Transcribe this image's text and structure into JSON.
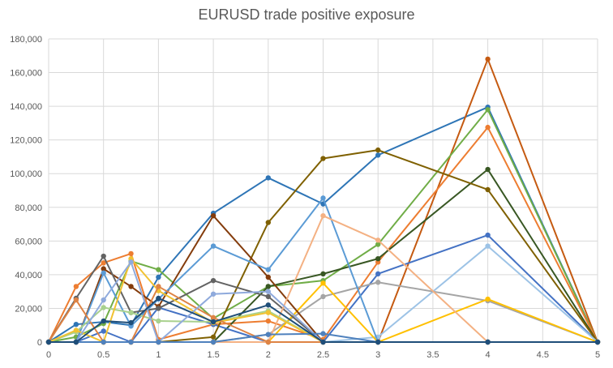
{
  "chart_data": {
    "type": "line",
    "title": "EURUSD trade positive exposure",
    "xlabel": "",
    "ylabel": "",
    "xlim": [
      0,
      5
    ],
    "ylim": [
      0,
      180000
    ],
    "x_ticks": [
      "0",
      "0.5",
      "1",
      "1.5",
      "2",
      "2.5",
      "3",
      "3.5",
      "4",
      "4.5",
      "5"
    ],
    "y_ticks": [
      "0",
      "20,000",
      "40,000",
      "60,000",
      "80,000",
      "100,000",
      "120,000",
      "140,000",
      "160,000",
      "180,000"
    ],
    "grid": true,
    "legend": "none",
    "x": [
      0,
      0.25,
      0.5,
      0.75,
      1,
      1.5,
      2,
      2.5,
      3,
      4,
      5
    ],
    "series": [
      {
        "color": "#2E75B6",
        "values": [
          0,
          10500,
          12000,
          10000,
          38500,
          76500,
          97500,
          82000,
          111000,
          139500,
          0
        ]
      },
      {
        "color": "#C55A11",
        "values": [
          0,
          0,
          0,
          0,
          0,
          0,
          0,
          0,
          0,
          168000,
          0
        ]
      },
      {
        "color": "#70AD47",
        "values": [
          0,
          3000,
          11000,
          48000,
          43000,
          14000,
          33000,
          36500,
          58000,
          138000,
          0
        ]
      },
      {
        "color": "#ED7D31",
        "values": [
          0,
          33000,
          47000,
          52500,
          1500,
          10500,
          12500,
          1500,
          47500,
          127500,
          0
        ]
      },
      {
        "color": "#385723",
        "values": [
          0,
          0,
          0,
          0,
          0,
          0,
          33000,
          40500,
          49500,
          102500,
          0
        ]
      },
      {
        "color": "#4472C4",
        "values": [
          0,
          0,
          6500,
          0,
          20500,
          10500,
          0,
          0,
          40500,
          63500,
          0
        ]
      },
      {
        "color": "#7F6000",
        "values": [
          0,
          0,
          0,
          0,
          0,
          3000,
          71000,
          109000,
          114000,
          90500,
          0
        ]
      },
      {
        "color": "#9DC3E6",
        "values": [
          0,
          0,
          0,
          0,
          0,
          0,
          0,
          0,
          3000,
          57000,
          0
        ]
      },
      {
        "color": "#A5A5A5",
        "values": [
          0,
          0,
          0,
          0,
          0,
          0,
          4500,
          27000,
          35500,
          24500,
          0
        ]
      },
      {
        "color": "#FFC000",
        "values": [
          0,
          0,
          0,
          0,
          0,
          0,
          0,
          35000,
          0,
          25500,
          0
        ]
      },
      {
        "color": "#843C0C",
        "values": [
          0,
          0,
          43500,
          33000,
          21000,
          75000,
          38500,
          0,
          0,
          0,
          0
        ]
      },
      {
        "color": "#636363",
        "values": [
          0,
          26000,
          51000,
          17500,
          20000,
          36500,
          27000,
          0,
          0,
          0,
          0
        ]
      },
      {
        "color": "#5B9BD5",
        "values": [
          0,
          0,
          41000,
          9500,
          25500,
          57000,
          43000,
          85500,
          0,
          0,
          0
        ]
      },
      {
        "color": "#F4B183",
        "values": [
          0,
          0,
          0,
          0,
          0,
          0,
          0,
          75000,
          60500,
          0,
          0
        ]
      },
      {
        "color": "#A9D18E",
        "values": [
          0,
          6000,
          20500,
          17500,
          12500,
          12000,
          18500,
          0,
          0,
          0,
          0
        ]
      },
      {
        "color": "#F1C232",
        "values": [
          0,
          7000,
          0,
          49500,
          30500,
          11500,
          17500,
          0,
          0,
          0,
          0
        ]
      },
      {
        "color": "#DE8344",
        "values": [
          0,
          25000,
          0,
          0,
          33000,
          14500,
          0,
          0,
          0,
          0,
          0
        ]
      },
      {
        "color": "#8FAADC",
        "values": [
          0,
          0,
          25000,
          47500,
          0,
          28500,
          30000,
          0,
          0,
          0,
          0
        ]
      },
      {
        "color": "#4F81BD",
        "values": [
          0,
          0,
          0,
          0,
          0,
          0,
          4500,
          5000,
          0,
          0,
          0
        ]
      },
      {
        "color": "#1F4E79",
        "values": [
          0,
          0,
          12500,
          11500,
          26000,
          12000,
          22000,
          0,
          0,
          0,
          0
        ]
      }
    ]
  }
}
